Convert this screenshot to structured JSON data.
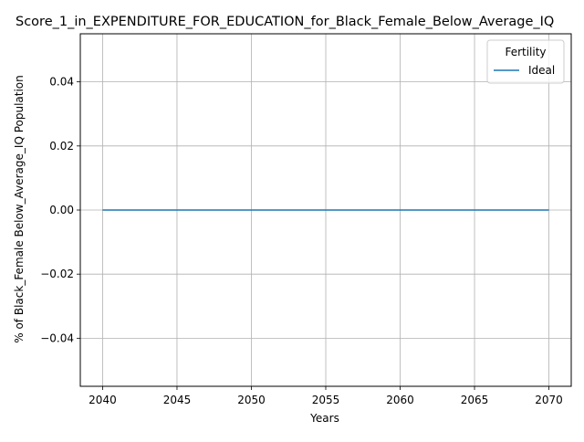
{
  "chart_data": {
    "type": "line",
    "title": "Score_1_in_EXPENDITURE_FOR_EDUCATION_for_Black_Female_Below_Average_IQ",
    "xlabel": "Years",
    "ylabel": "% of Black_Female Below_Average_IQ Population",
    "xlim": [
      2038.5,
      2071.5
    ],
    "ylim": [
      -0.055,
      0.055
    ],
    "x_ticks": [
      2040,
      2045,
      2050,
      2055,
      2060,
      2065,
      2070
    ],
    "x_tick_labels": [
      "2040",
      "2045",
      "2050",
      "2055",
      "2060",
      "2065",
      "2070"
    ],
    "y_ticks": [
      -0.04,
      -0.02,
      0.0,
      0.02,
      0.04
    ],
    "y_tick_labels": [
      "−0.04",
      "−0.02",
      "0.00",
      "0.02",
      "0.04"
    ],
    "grid": true,
    "legend": {
      "title": "Fertility",
      "placement": "top-right"
    },
    "series": [
      {
        "name": "Ideal",
        "color": "#1f77b4",
        "x": [
          2040,
          2041,
          2042,
          2043,
          2044,
          2045,
          2046,
          2047,
          2048,
          2049,
          2050,
          2051,
          2052,
          2053,
          2054,
          2055,
          2056,
          2057,
          2058,
          2059,
          2060,
          2061,
          2062,
          2063,
          2064,
          2065,
          2066,
          2067,
          2068,
          2069,
          2070
        ],
        "y": [
          0,
          0,
          0,
          0,
          0,
          0,
          0,
          0,
          0,
          0,
          0,
          0,
          0,
          0,
          0,
          0,
          0,
          0,
          0,
          0,
          0,
          0,
          0,
          0,
          0,
          0,
          0,
          0,
          0,
          0,
          0
        ]
      }
    ]
  }
}
